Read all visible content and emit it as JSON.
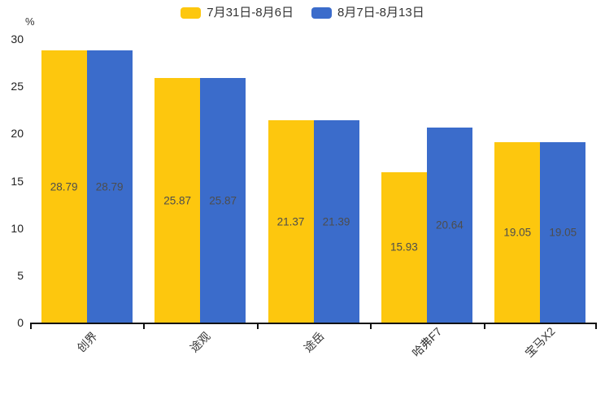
{
  "legend": {
    "items": [
      {
        "label": "7月31日-8月6日",
        "color": "#FDC70E"
      },
      {
        "label": "8月7日-8月13日",
        "color": "#3B6CCB"
      }
    ]
  },
  "chart_data": {
    "type": "bar",
    "title": "",
    "categories": [
      "创界",
      "途观",
      "途岳",
      "哈弗F7",
      "宝马X2"
    ],
    "series": [
      {
        "name": "7月31日-8月6日",
        "color": "#FDC70E",
        "values": [
          28.79,
          25.87,
          21.37,
          15.93,
          19.05
        ],
        "labels": [
          "28.79",
          "25.87",
          "21.37",
          "15.93",
          "19.05"
        ]
      },
      {
        "name": "8月7日-8月13日",
        "color": "#3B6CCB",
        "values": [
          28.79,
          25.87,
          21.39,
          20.64,
          19.05
        ],
        "labels": [
          "28.79",
          "25.87",
          "21.39",
          "20.64",
          "19.05"
        ]
      }
    ],
    "xlabel": "",
    "ylabel": "%",
    "ylim": [
      0,
      30
    ],
    "yticks": [
      0,
      5,
      10,
      15,
      20,
      25,
      30
    ],
    "ytick_labels": [
      "0",
      "5",
      "10",
      "15",
      "20",
      "25",
      "30"
    ],
    "grid": false,
    "legend_position": "top",
    "value_label_position": "inside-center",
    "bar_text_color": "#4d4d4d",
    "axis_color": "#111111"
  }
}
